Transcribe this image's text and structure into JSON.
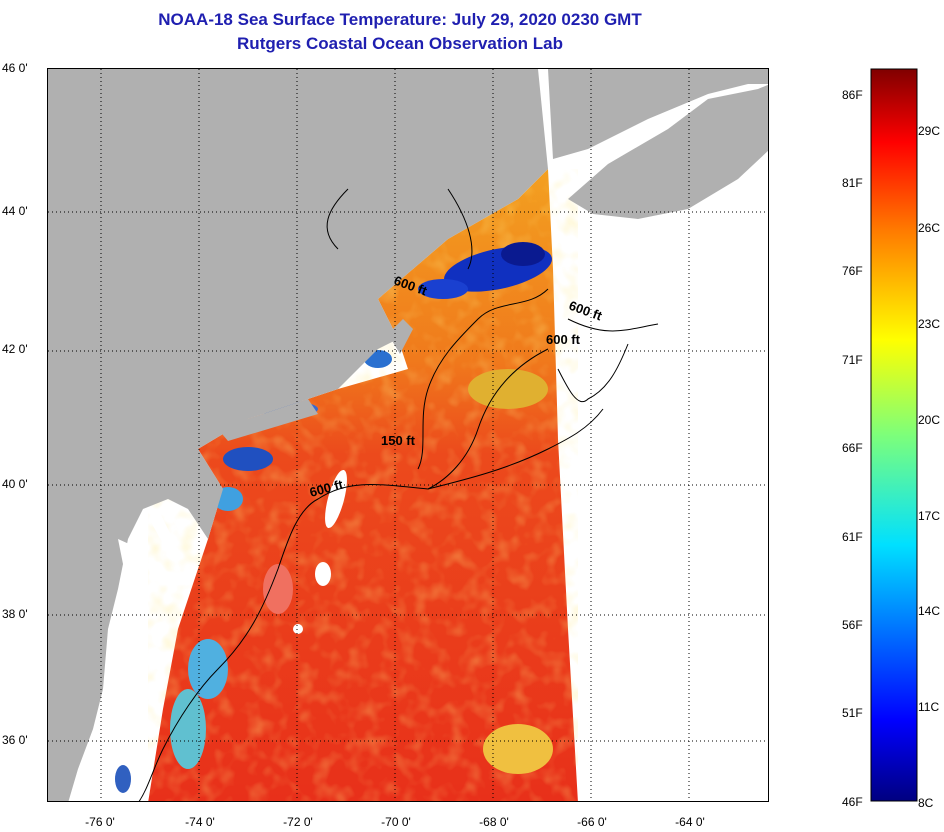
{
  "title": {
    "line1": "NOAA-18 Sea Surface Temperature:  July 29, 2020 0230 GMT",
    "line2": "Rutgers Coastal Ocean Observation Lab"
  },
  "axes": {
    "latitude_labels": [
      "46 0'",
      "44 0'",
      "42 0'",
      "40 0'",
      "38 0'",
      "36 0'"
    ],
    "longitude_labels": [
      "-76 0'",
      "-74 0'",
      "-72 0'",
      "-70 0'",
      "-68 0'",
      "-66 0'",
      "-64 0'"
    ]
  },
  "contours": {
    "labels": [
      "600 ft",
      "600 ft",
      "600 ft",
      "150 ft",
      "600 ft"
    ]
  },
  "colorbar": {
    "fahrenheit_labels": [
      "86F",
      "81F",
      "76F",
      "71F",
      "66F",
      "61F",
      "56F",
      "51F",
      "46F"
    ],
    "celsius_labels": [
      "29C",
      "26C",
      "23C",
      "20C",
      "17C",
      "14C",
      "11C",
      "8C"
    ]
  },
  "colors": {
    "title": "#1f1fb0",
    "land": "#b0b0b0",
    "no_data": "#ffffff",
    "warm": "#e8341c",
    "cold": "#1020a0"
  }
}
